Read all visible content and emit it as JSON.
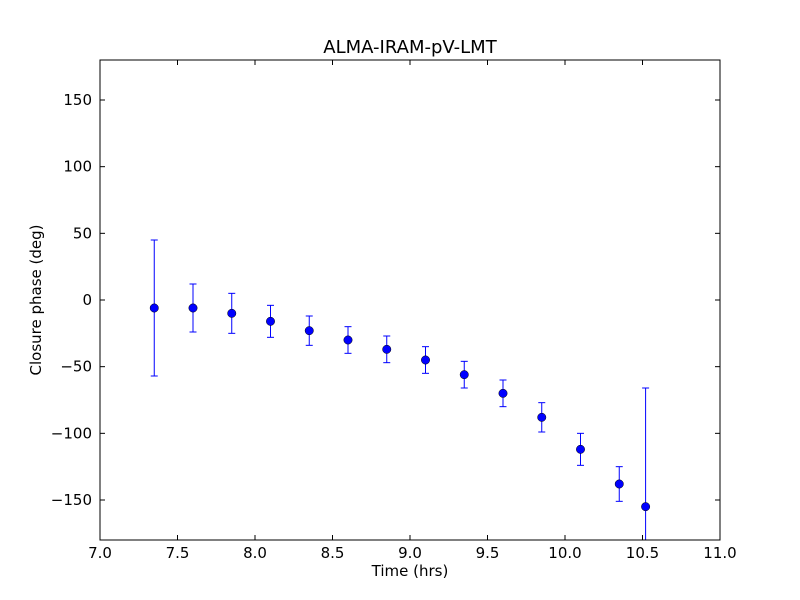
{
  "chart_data": {
    "type": "scatter",
    "title": "ALMA-IRAM-pV-LMT",
    "xlabel": "Time (hrs)",
    "ylabel": "Closure phase (deg)",
    "xlim": [
      7.0,
      11.0
    ],
    "ylim": [
      -180,
      180
    ],
    "xticks": [
      7.0,
      7.5,
      8.0,
      8.5,
      9.0,
      9.5,
      10.0,
      10.5,
      11.0
    ],
    "xtick_labels": [
      "7.0",
      "7.5",
      "8.0",
      "8.5",
      "9.0",
      "9.5",
      "10.0",
      "10.5",
      "11.0"
    ],
    "yticks": [
      -150,
      -100,
      -50,
      0,
      50,
      100,
      150
    ],
    "ytick_labels": [
      "−150",
      "−100",
      "−50",
      "0",
      "50",
      "100",
      "150"
    ],
    "grid": false,
    "marker_color": "#0000ff",
    "points": [
      {
        "x": 7.35,
        "y": -6,
        "err": 51
      },
      {
        "x": 7.6,
        "y": -6,
        "err": 18
      },
      {
        "x": 7.85,
        "y": -10,
        "err": 15
      },
      {
        "x": 8.1,
        "y": -16,
        "err": 12
      },
      {
        "x": 8.35,
        "y": -23,
        "err": 11
      },
      {
        "x": 8.6,
        "y": -30,
        "err": 10
      },
      {
        "x": 8.85,
        "y": -37,
        "err": 10
      },
      {
        "x": 9.1,
        "y": -45,
        "err": 10
      },
      {
        "x": 9.35,
        "y": -56,
        "err": 10
      },
      {
        "x": 9.6,
        "y": -70,
        "err": 10
      },
      {
        "x": 9.85,
        "y": -88,
        "err": 11
      },
      {
        "x": 10.1,
        "y": -112,
        "err": 12
      },
      {
        "x": 10.35,
        "y": -138,
        "err": 13
      },
      {
        "x": 10.52,
        "y": -155,
        "err": 89
      }
    ]
  }
}
